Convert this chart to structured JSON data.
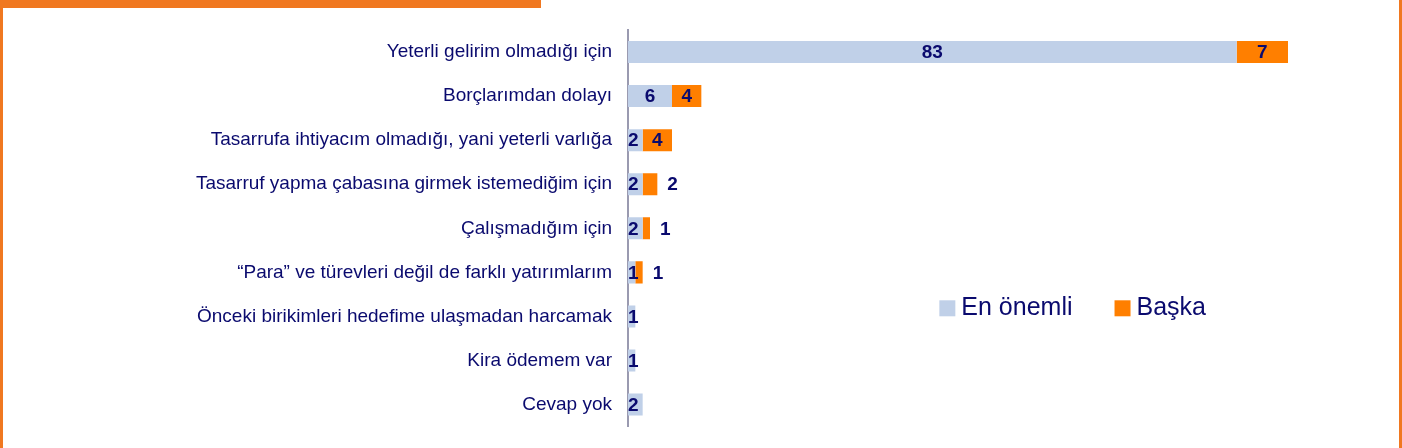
{
  "chart_data": {
    "type": "bar",
    "orientation": "horizontal",
    "stacked": true,
    "data_labels": true,
    "legend": "right",
    "categories": [
      "Yeterli gelirim olmadığı için",
      "Borçlarımdan dolayı",
      "Tasarrufa ihtiyacım olmadığı, yani yeterli varlığa",
      "Tasarruf yapma çabasına girmek istemediğim için",
      "Çalışmadığım için",
      "“Para” ve türevleri değil de farklı yatırımlarım",
      "Önceki birikimleri hedefime ulaşmadan harcamak",
      "Kira ödemem var",
      "Cevap yok"
    ],
    "series": [
      {
        "name": "En önemli",
        "color": "#c0d0e8",
        "values": [
          83,
          6,
          2,
          2,
          2,
          1,
          1,
          1,
          2
        ]
      },
      {
        "name": "Başka",
        "color": "#ff7f00",
        "values": [
          7,
          4,
          4,
          2,
          1,
          1,
          null,
          null,
          null
        ]
      }
    ]
  }
}
